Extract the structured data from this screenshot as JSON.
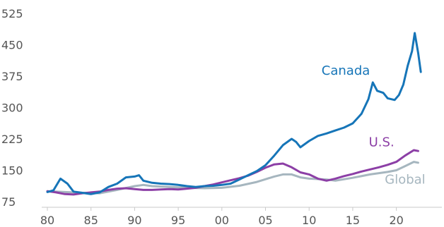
{
  "chart_data": {
    "type": "line",
    "title": "",
    "xlabel": "",
    "ylabel": "",
    "xlim": [
      1980,
      2024
    ],
    "ylim": [
      75,
      525
    ],
    "x_ticks": [
      {
        "value": 1980,
        "label": "80"
      },
      {
        "value": 1985,
        "label": "85"
      },
      {
        "value": 1990,
        "label": "90"
      },
      {
        "value": 1995,
        "label": "95"
      },
      {
        "value": 2000,
        "label": "00"
      },
      {
        "value": 2005,
        "label": "05"
      },
      {
        "value": 2010,
        "label": "10"
      },
      {
        "value": 2015,
        "label": "15"
      },
      {
        "value": 2020,
        "label": "20"
      }
    ],
    "y_ticks": [
      {
        "value": 75,
        "label": "75"
      },
      {
        "value": 150,
        "label": "150"
      },
      {
        "value": 225,
        "label": "225"
      },
      {
        "value": 300,
        "label": "300"
      },
      {
        "value": 375,
        "label": "375"
      },
      {
        "value": 450,
        "label": "450"
      },
      {
        "value": 525,
        "label": "525"
      }
    ],
    "grid": false,
    "series": [
      {
        "name": "Global",
        "color": "#a6b6bf",
        "label_at": [
          2021.0,
          118
        ],
        "points": [
          [
            1980,
            100
          ],
          [
            1982,
            98
          ],
          [
            1984,
            96
          ],
          [
            1986,
            95
          ],
          [
            1988,
            103
          ],
          [
            1990,
            112
          ],
          [
            1991,
            115
          ],
          [
            1992,
            112
          ],
          [
            1994,
            110
          ],
          [
            1996,
            108
          ],
          [
            1998,
            107
          ],
          [
            2000,
            108
          ],
          [
            2002,
            113
          ],
          [
            2004,
            122
          ],
          [
            2006,
            135
          ],
          [
            2007,
            140
          ],
          [
            2008,
            140
          ],
          [
            2009,
            133
          ],
          [
            2010,
            130
          ],
          [
            2012,
            128
          ],
          [
            2013,
            125
          ],
          [
            2015,
            132
          ],
          [
            2017,
            140
          ],
          [
            2019,
            146
          ],
          [
            2020,
            150
          ],
          [
            2021,
            160
          ],
          [
            2022,
            170
          ],
          [
            2022.5,
            168
          ]
        ]
      },
      {
        "name": "U.S.",
        "color": "#8c3fa6",
        "label_at": [
          2018.3,
          207
        ],
        "points": [
          [
            1980,
            100
          ],
          [
            1981,
            97
          ],
          [
            1982,
            93
          ],
          [
            1983,
            92
          ],
          [
            1984,
            95
          ],
          [
            1985,
            97
          ],
          [
            1986,
            99
          ],
          [
            1987,
            103
          ],
          [
            1988,
            106
          ],
          [
            1989,
            107
          ],
          [
            1990,
            105
          ],
          [
            1991,
            103
          ],
          [
            1992,
            103
          ],
          [
            1993,
            104
          ],
          [
            1994,
            105
          ],
          [
            1995,
            104
          ],
          [
            1996,
            106
          ],
          [
            1997,
            108
          ],
          [
            1998,
            112
          ],
          [
            1999,
            116
          ],
          [
            2000,
            121
          ],
          [
            2001,
            126
          ],
          [
            2002,
            131
          ],
          [
            2003,
            137
          ],
          [
            2004,
            146
          ],
          [
            2005,
            156
          ],
          [
            2006,
            164
          ],
          [
            2007,
            166
          ],
          [
            2008,
            157
          ],
          [
            2009,
            145
          ],
          [
            2010,
            140
          ],
          [
            2011,
            130
          ],
          [
            2012,
            125
          ],
          [
            2013,
            130
          ],
          [
            2014,
            136
          ],
          [
            2015,
            141
          ],
          [
            2016,
            147
          ],
          [
            2017,
            152
          ],
          [
            2018,
            157
          ],
          [
            2019,
            163
          ],
          [
            2020,
            170
          ],
          [
            2021,
            185
          ],
          [
            2022,
            198
          ],
          [
            2022.5,
            196
          ]
        ]
      },
      {
        "name": "Canada",
        "color": "#1675b8",
        "label_at": [
          2014.2,
          378
        ],
        "points": [
          [
            1980,
            98
          ],
          [
            1980.7,
            102
          ],
          [
            1981.5,
            130
          ],
          [
            1982.3,
            118
          ],
          [
            1983,
            99
          ],
          [
            1984,
            96
          ],
          [
            1985,
            93
          ],
          [
            1986,
            97
          ],
          [
            1987,
            110
          ],
          [
            1988,
            118
          ],
          [
            1989,
            133
          ],
          [
            1990,
            135
          ],
          [
            1990.5,
            138
          ],
          [
            1991,
            125
          ],
          [
            1992,
            120
          ],
          [
            1993,
            118
          ],
          [
            1994,
            117
          ],
          [
            1995,
            115
          ],
          [
            1996,
            112
          ],
          [
            1997,
            110
          ],
          [
            1998,
            112
          ],
          [
            1999,
            113
          ],
          [
            2000,
            115
          ],
          [
            2001,
            118
          ],
          [
            2002,
            128
          ],
          [
            2003,
            138
          ],
          [
            2004,
            148
          ],
          [
            2005,
            162
          ],
          [
            2006,
            185
          ],
          [
            2007,
            210
          ],
          [
            2008,
            225
          ],
          [
            2008.5,
            218
          ],
          [
            2009,
            205
          ],
          [
            2010,
            220
          ],
          [
            2011,
            232
          ],
          [
            2012,
            238
          ],
          [
            2013,
            245
          ],
          [
            2014,
            252
          ],
          [
            2015,
            262
          ],
          [
            2016,
            285
          ],
          [
            2016.8,
            320
          ],
          [
            2017.3,
            360
          ],
          [
            2017.8,
            340
          ],
          [
            2018.5,
            335
          ],
          [
            2019,
            322
          ],
          [
            2019.8,
            318
          ],
          [
            2020.3,
            330
          ],
          [
            2020.8,
            355
          ],
          [
            2021.3,
            400
          ],
          [
            2021.8,
            435
          ],
          [
            2022.1,
            478
          ],
          [
            2022.5,
            430
          ],
          [
            2022.8,
            385
          ]
        ]
      }
    ]
  }
}
